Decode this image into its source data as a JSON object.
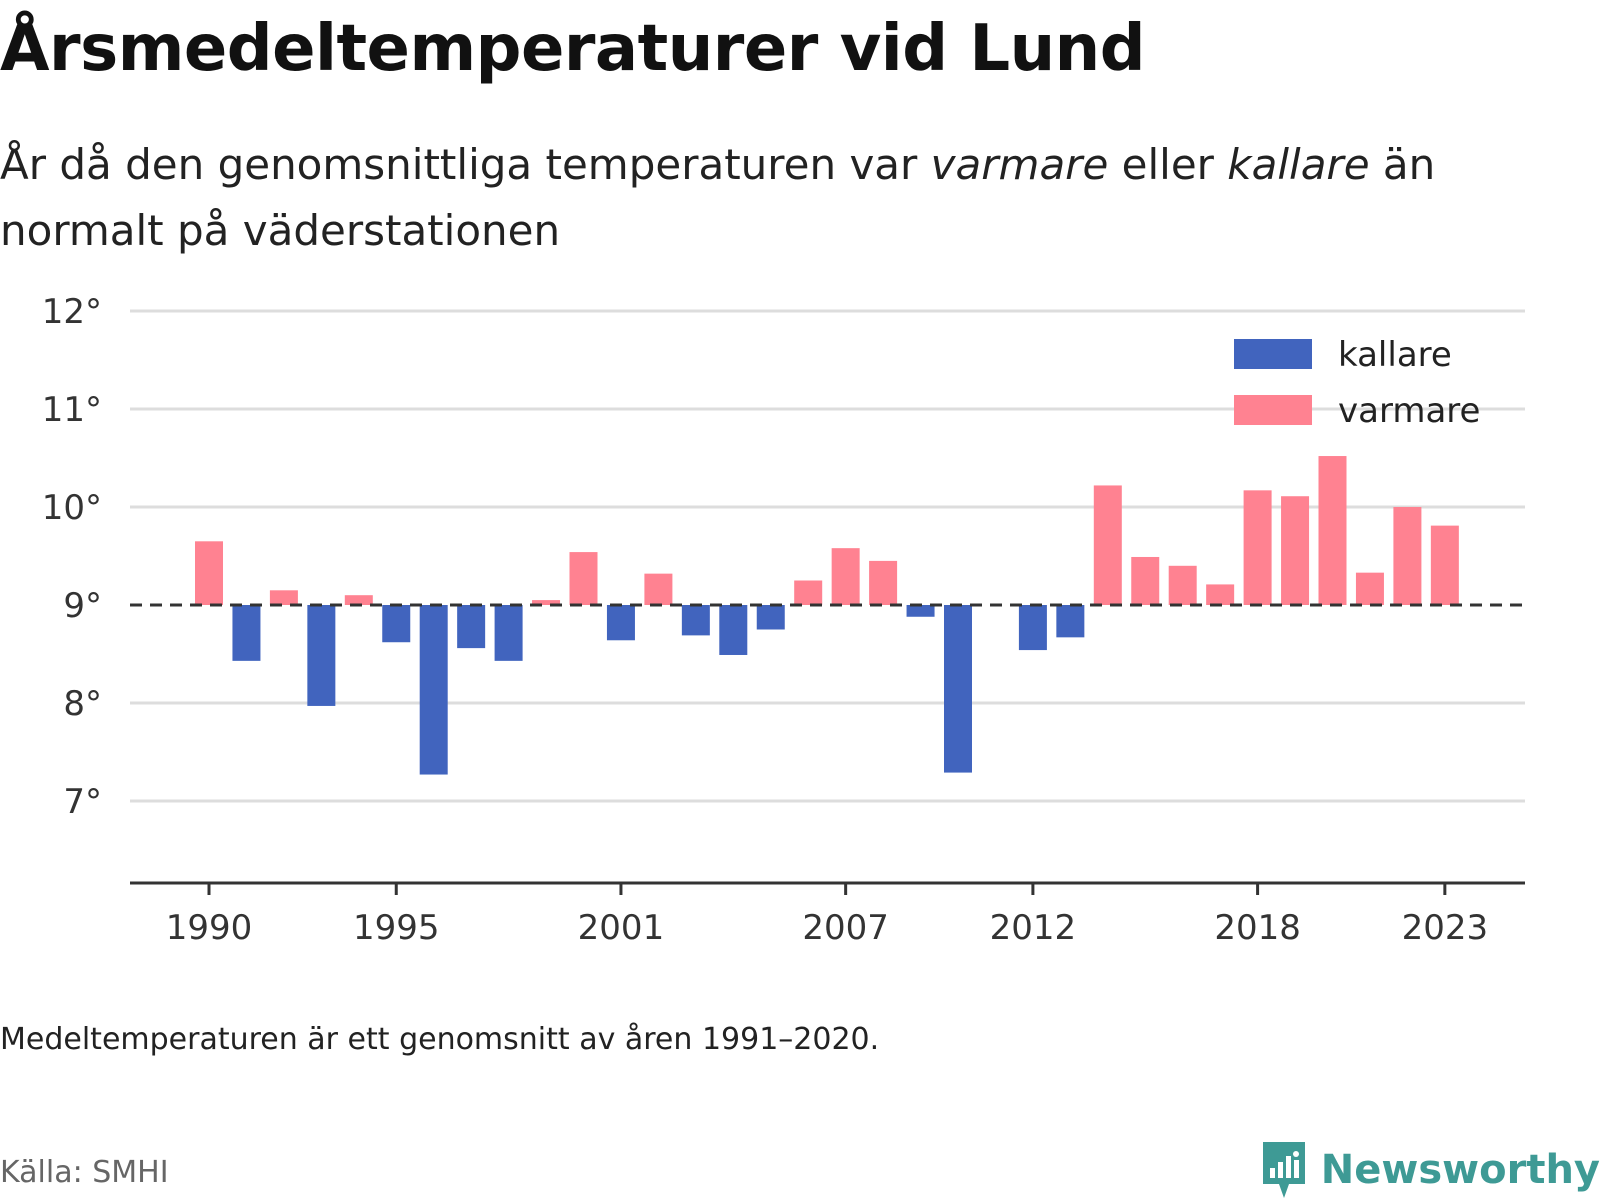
{
  "title": "Årsmedeltemperaturer vid Lund",
  "subtitle": {
    "part1": "År då den genomsnittliga temperaturen var ",
    "warm_word": "varmare",
    "part2": " eller ",
    "cold_word": "kallare",
    "part3": " än normalt på väderstationen"
  },
  "note": "Medeltemperaturen är ett genomsnitt av åren 1991–2020.",
  "source": "Källa: SMHI",
  "brand": {
    "name": "Newsworthy",
    "icon": "newsworthy-logo-icon",
    "color": "#3e9a95"
  },
  "colors": {
    "kallare": "#4164be",
    "varmare": "#ff8291",
    "grid": "#dddddd",
    "baseline": "#333333"
  },
  "chart_data": {
    "type": "bar",
    "baseline": 9,
    "ylim": [
      6.2,
      12
    ],
    "yticks": [
      7,
      8,
      9,
      10,
      11,
      12
    ],
    "ytick_labels": [
      "7°",
      "8°",
      "9°",
      "10°",
      "11°",
      "12°"
    ],
    "xticks": [
      1990,
      1995,
      2001,
      2007,
      2012,
      2018,
      2023
    ],
    "xtick_labels": [
      "1990",
      "1995",
      "2001",
      "2007",
      "2012",
      "2018",
      "2023"
    ],
    "legend": {
      "position": "top-right",
      "entries": [
        "kallare",
        "varmare"
      ]
    },
    "grid": true,
    "categories": [
      1990,
      1991,
      1992,
      1993,
      1994,
      1995,
      1996,
      1997,
      1998,
      1999,
      2000,
      2001,
      2002,
      2003,
      2004,
      2005,
      2006,
      2007,
      2008,
      2009,
      2010,
      2011,
      2012,
      2013,
      2014,
      2015,
      2016,
      2017,
      2018,
      2019,
      2020,
      2021,
      2022,
      2023
    ],
    "values": [
      9.65,
      8.43,
      9.15,
      7.97,
      9.1,
      8.62,
      7.27,
      8.56,
      8.43,
      9.05,
      9.54,
      8.64,
      9.32,
      8.69,
      8.49,
      8.75,
      9.25,
      9.58,
      9.45,
      8.88,
      7.29,
      null,
      8.54,
      8.67,
      10.22,
      9.49,
      9.4,
      9.21,
      10.17,
      10.11,
      10.52,
      9.33,
      10.0,
      9.81
    ]
  }
}
